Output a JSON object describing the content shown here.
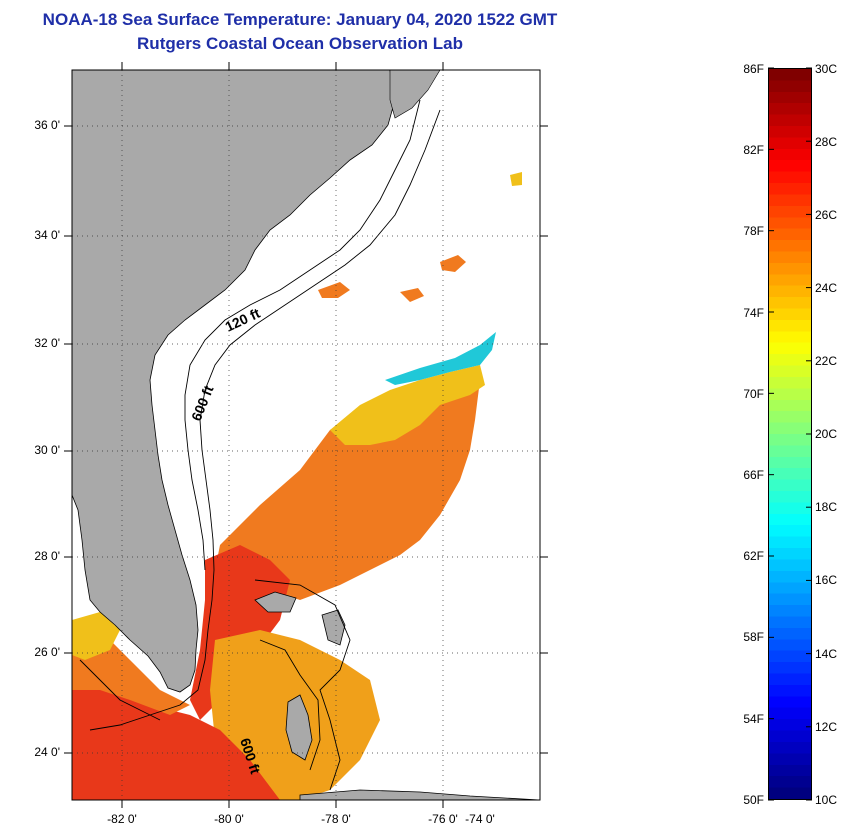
{
  "header": {
    "title": "NOAA-18 Sea Surface Temperature:  January 04, 2020 1522 GMT",
    "subtitle": "Rutgers Coastal Ocean Observation Lab"
  },
  "map": {
    "lat_labels": [
      "36 0'",
      "34 0'",
      "32 0'",
      "30 0'",
      "28 0'",
      "26 0'",
      "24 0'"
    ],
    "lon_labels": [
      "-82 0'",
      "-80 0'",
      "-78 0'",
      "-76 0'",
      "-74 0'"
    ],
    "contour_labels": [
      "120 ft",
      "600 ft",
      "600 ft"
    ],
    "colors": {
      "land": "#a9a9a9",
      "ocean_no_data": "#ffffff",
      "warm_sst": "#f07a1f",
      "hot_sst": "#e8381a",
      "mild_sst": "#f0c01a",
      "cool_sst": "#20c8d8"
    }
  },
  "colorbar": {
    "fahrenheit_labels": [
      "86F",
      "82F",
      "78F",
      "74F",
      "70F",
      "66F",
      "62F",
      "58F",
      "54F",
      "50F"
    ],
    "celsius_labels": [
      "30C",
      "28C",
      "26C",
      "24C",
      "22C",
      "20C",
      "18C",
      "16C",
      "14C",
      "12C",
      "10C"
    ],
    "range_c": [
      10,
      30
    ],
    "range_f": [
      50,
      86
    ],
    "colormap": "jet"
  }
}
